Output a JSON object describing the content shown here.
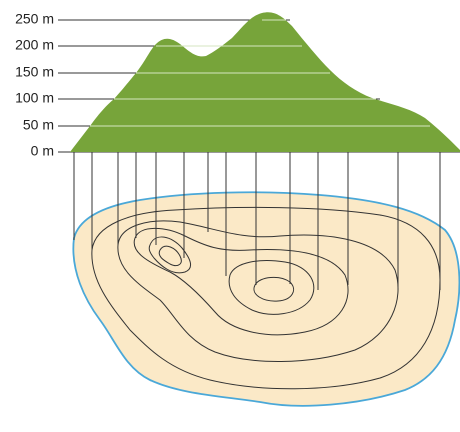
{
  "elevation_labels": [
    "250 m",
    "200 m",
    "150 m",
    "100 m",
    "50 m",
    "0 m"
  ]
}
